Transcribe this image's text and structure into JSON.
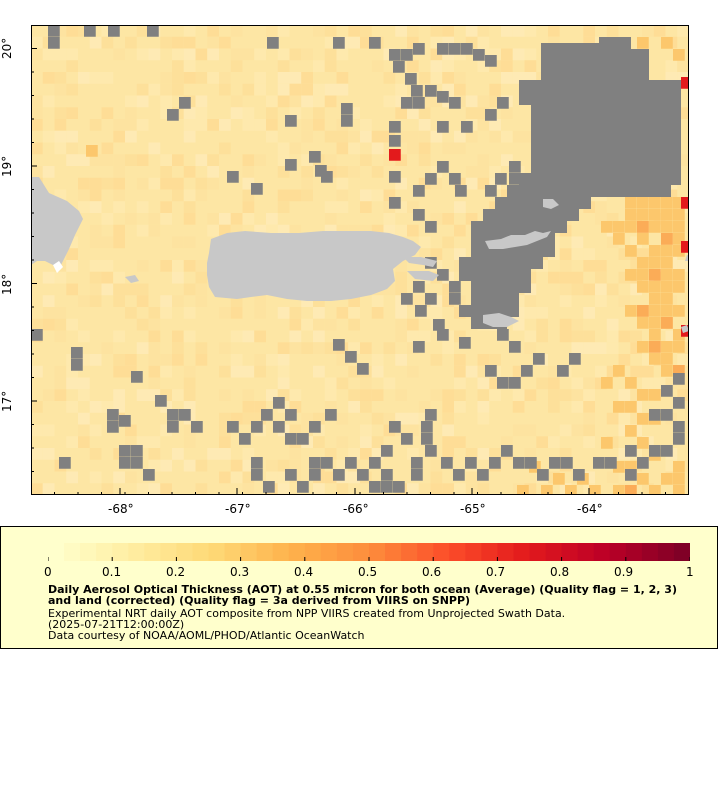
{
  "map": {
    "lat_labels": [
      "20°",
      "19°",
      "18°",
      "17°"
    ],
    "lon_labels": [
      "-68°",
      "-67°",
      "-66°",
      "-65°",
      "-64°"
    ],
    "extent": {
      "lon_min": -68.75,
      "lon_max": -63.18,
      "lat_min": 16.27,
      "lat_max": 20.25
    },
    "features": [
      "Hispaniola (east tip)",
      "Puerto Rico",
      "Virgin Islands",
      "St. Croix",
      "Mona Island"
    ]
  },
  "colorbar": {
    "ticks": [
      "0",
      "0.1",
      "0.2",
      "0.3",
      "0.4",
      "0.5",
      "0.6",
      "0.7",
      "0.8",
      "0.9",
      "1"
    ],
    "range": [
      0,
      1
    ],
    "colors": [
      "#ffffcc",
      "#ffeda0",
      "#fed976",
      "#feb24c",
      "#fd8d3c",
      "#fc4e2a",
      "#e31a1c",
      "#bd0026",
      "#800026"
    ]
  },
  "legend": {
    "title": "Daily Aerosol Optical Thickness (AOT) at 0.55 micron for both ocean (Average) (Quality flag = 1, 2, 3) and land (corrected) (Quality flag = 3a derived from VIIRS on SNPP)",
    "line1": "Experimental NRT daily AOT composite from NPP VIIRS created from Unprojected Swath Data.",
    "line2": "(2025-07-21T12:00:00Z)",
    "line3": "Data courtesy of NOAA/AOML/PHOD/Atlantic OceanWatch"
  },
  "colors": {
    "no_data": "#808080",
    "land": "#c8c8c8",
    "aot_low": "#fde9a8",
    "aot_mid": "#fdd37a",
    "aot_high": "#e31a1c"
  }
}
